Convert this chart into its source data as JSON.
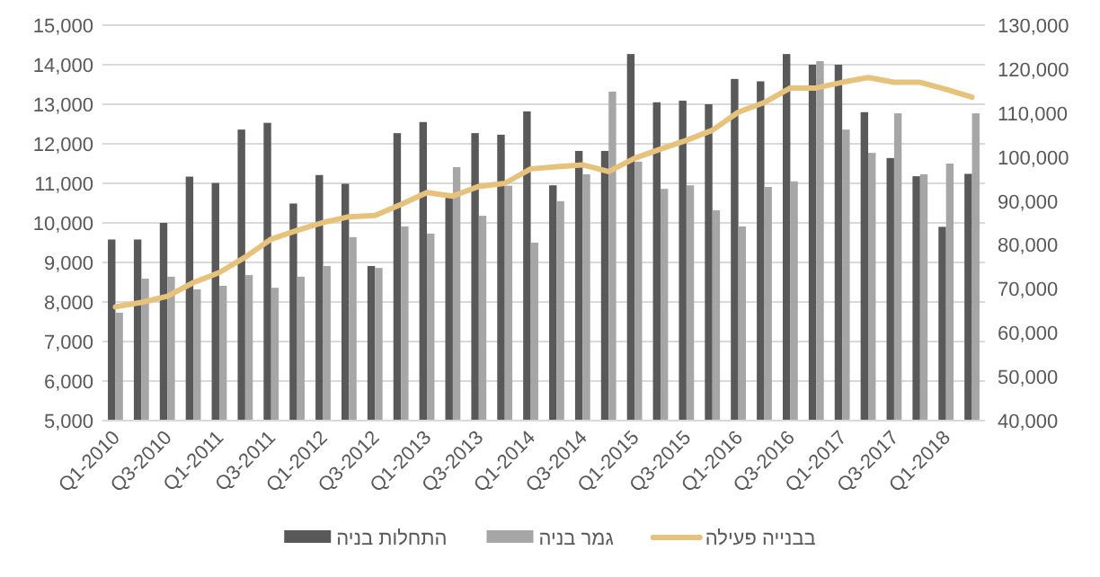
{
  "chart_data": {
    "type": "bar",
    "categories": [
      "Q1-2010",
      null,
      "Q3-2010",
      null,
      "Q1-2011",
      null,
      "Q3-2011",
      null,
      "Q1-2012",
      null,
      "Q3-2012",
      null,
      "Q1-2013",
      null,
      "Q3-2013",
      null,
      "Q1-2014",
      null,
      "Q3-2014",
      null,
      "Q1-2015",
      null,
      "Q3-2015",
      null,
      "Q1-2016",
      null,
      "Q3-2016",
      null,
      "Q1-2017",
      null,
      "Q3-2017",
      null,
      "Q1-2018",
      null
    ],
    "series": [
      {
        "name": "התחלות בניה",
        "color": "#595959",
        "values": [
          9580,
          9580,
          10000,
          11170,
          11010,
          12360,
          12530,
          10490,
          11210,
          10990,
          8910,
          12270,
          12550,
          10640,
          12270,
          12230,
          12820,
          10950,
          11820,
          11820,
          14270,
          13050,
          13090,
          13000,
          13640,
          13580,
          14270,
          14000,
          14000,
          12800,
          11640,
          11180,
          9900,
          11240
        ]
      },
      {
        "name": "גמר בניה",
        "color": "#a6a6a6",
        "values": [
          7730,
          8590,
          8640,
          8320,
          8410,
          8680,
          8360,
          8640,
          8910,
          9640,
          8860,
          9910,
          9730,
          11410,
          10180,
          10940,
          9500,
          10550,
          11230,
          13320,
          11550,
          10860,
          10950,
          10320,
          9910,
          10910,
          11050,
          14090,
          12360,
          11770,
          12770,
          11230,
          11500,
          12770
        ]
      },
      {
        "name": "בבנייה פעילה",
        "type": "line",
        "axis": "y2",
        "color": "#e6c27a",
        "values": [
          65900,
          66900,
          68300,
          71400,
          73700,
          77200,
          81300,
          83300,
          85100,
          86400,
          86700,
          89200,
          91900,
          91100,
          93300,
          94000,
          97300,
          97800,
          98200,
          96700,
          99700,
          101800,
          103800,
          106100,
          110200,
          112400,
          115700,
          115700,
          117000,
          118100,
          117000,
          117000,
          115400,
          113600
        ]
      }
    ],
    "ylim": [
      5000,
      15000
    ],
    "yticks": [
      {
        "value": 5000,
        "label": "5,000"
      },
      {
        "value": 6000,
        "label": "6,000"
      },
      {
        "value": 7000,
        "label": "7,000"
      },
      {
        "value": 8000,
        "label": "8,000"
      },
      {
        "value": 9000,
        "label": "9,000"
      },
      {
        "value": 10000,
        "label": "10,000"
      },
      {
        "value": 11000,
        "label": "11,000"
      },
      {
        "value": 12000,
        "label": "12,000"
      },
      {
        "value": 13000,
        "label": "13,000"
      },
      {
        "value": 14000,
        "label": "14,000"
      },
      {
        "value": 15000,
        "label": "15,000"
      }
    ],
    "y2lim": [
      40000,
      130000
    ],
    "y2ticks": [
      {
        "value": 40000,
        "label": "40,000"
      },
      {
        "value": 50000,
        "label": "50,000"
      },
      {
        "value": 60000,
        "label": "60,000"
      },
      {
        "value": 70000,
        "label": "70,000"
      },
      {
        "value": 80000,
        "label": "80,000"
      },
      {
        "value": 90000,
        "label": "90,000"
      },
      {
        "value": 100000,
        "label": "100,000"
      },
      {
        "value": 110000,
        "label": "110,000"
      },
      {
        "value": 120000,
        "label": "120,000"
      },
      {
        "value": 130000,
        "label": "130,000"
      }
    ],
    "grid": "y",
    "legend": "bottom"
  }
}
